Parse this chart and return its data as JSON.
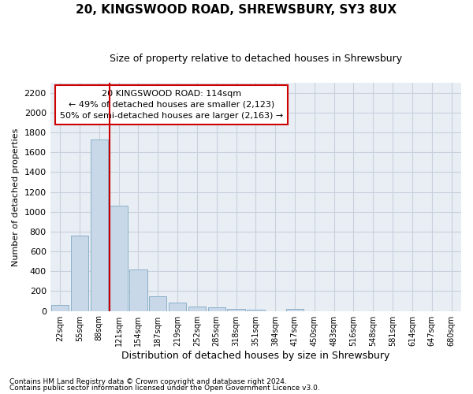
{
  "title": "20, KINGSWOOD ROAD, SHREWSBURY, SY3 8UX",
  "subtitle": "Size of property relative to detached houses in Shrewsbury",
  "xlabel": "Distribution of detached houses by size in Shrewsbury",
  "ylabel": "Number of detached properties",
  "bar_labels": [
    "22sqm",
    "55sqm",
    "88sqm",
    "121sqm",
    "154sqm",
    "187sqm",
    "219sqm",
    "252sqm",
    "285sqm",
    "318sqm",
    "351sqm",
    "384sqm",
    "417sqm",
    "450sqm",
    "483sqm",
    "516sqm",
    "548sqm",
    "581sqm",
    "614sqm",
    "647sqm",
    "680sqm"
  ],
  "bar_heights": [
    60,
    760,
    1730,
    1060,
    420,
    150,
    85,
    45,
    35,
    20,
    15,
    0,
    20,
    0,
    0,
    0,
    0,
    0,
    0,
    0,
    0
  ],
  "bar_color": "#c8d8e8",
  "bar_edge_color": "#8ab0c8",
  "grid_color": "#c8d0dc",
  "background_color": "#e8eef4",
  "vline_color": "#cc0000",
  "vline_x_index": 3,
  "annotation_line1": "20 KINGSWOOD ROAD: 114sqm",
  "annotation_line2": "← 49% of detached houses are smaller (2,123)",
  "annotation_line3": "50% of semi-detached houses are larger (2,163) →",
  "annotation_box_color": "#ffffff",
  "annotation_box_edge": "#cc0000",
  "ylim": [
    0,
    2300
  ],
  "yticks": [
    0,
    200,
    400,
    600,
    800,
    1000,
    1200,
    1400,
    1600,
    1800,
    2000,
    2200
  ],
  "footnote1": "Contains HM Land Registry data © Crown copyright and database right 2024.",
  "footnote2": "Contains public sector information licensed under the Open Government Licence v3.0.",
  "title_fontsize": 11,
  "subtitle_fontsize": 9,
  "ylabel_fontsize": 8,
  "xlabel_fontsize": 9,
  "ytick_fontsize": 8,
  "xtick_fontsize": 7
}
